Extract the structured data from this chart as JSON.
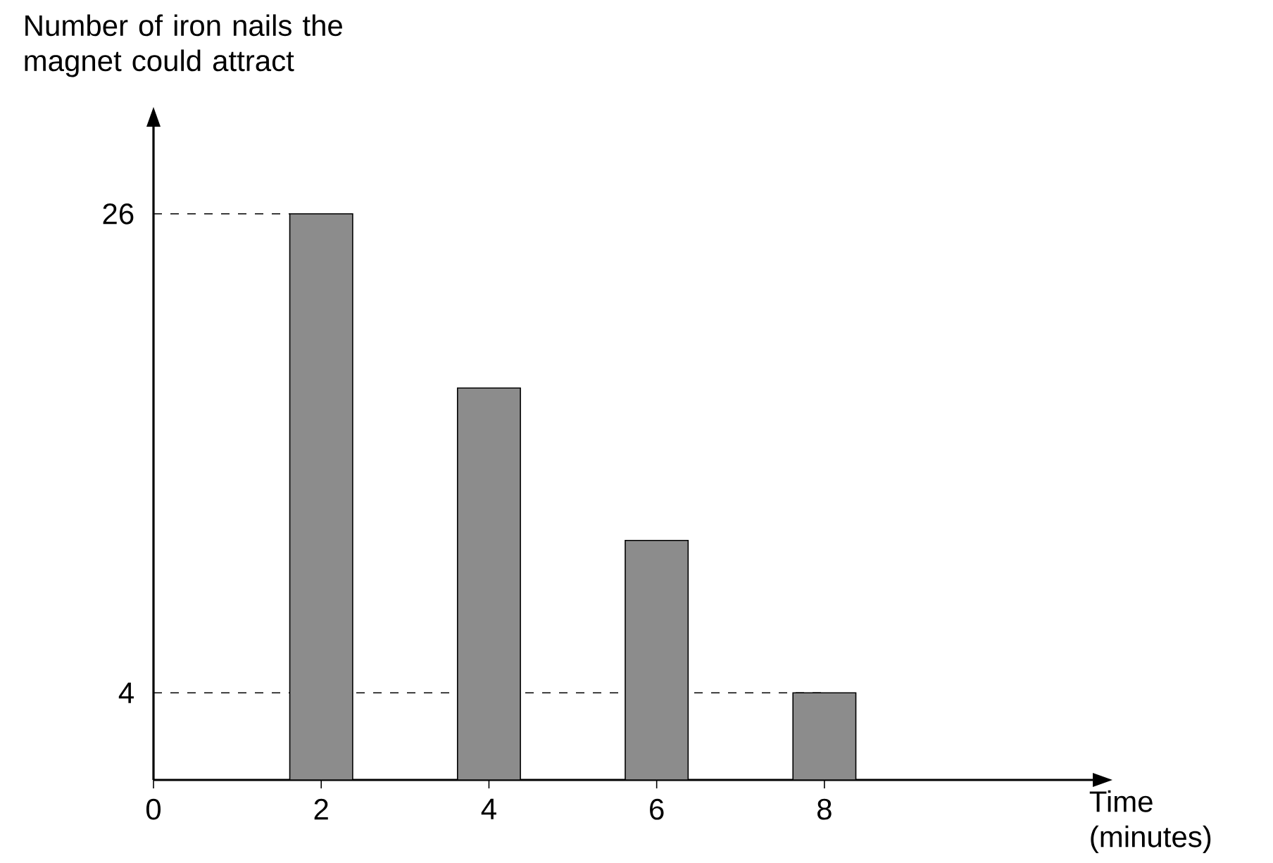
{
  "chart_data": {
    "type": "bar",
    "x": [
      2,
      4,
      6,
      8
    ],
    "values": [
      26,
      18,
      11,
      4
    ],
    "color": "#8c8c8c",
    "xlabel": "Time (minutes)",
    "ylabel": "Number of iron nails the magnet could attract",
    "xlim": [
      0,
      11.2
    ],
    "xticks": [
      0,
      2,
      4,
      6,
      8
    ],
    "ylim": [
      0,
      30
    ],
    "yticks": [
      4,
      26
    ],
    "ref_lines": [
      {
        "axis": "y",
        "value": 26,
        "line_style": "dashed"
      },
      {
        "axis": "y",
        "value": 4,
        "line_style": "dashed"
      }
    ]
  }
}
